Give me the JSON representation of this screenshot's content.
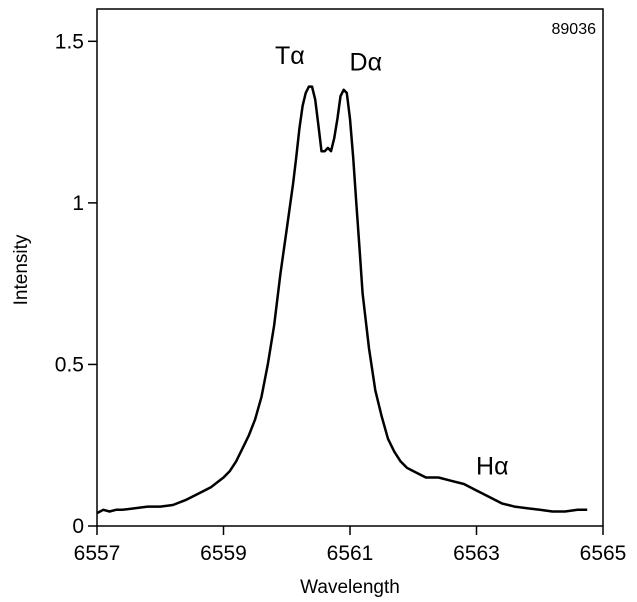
{
  "chart_data": {
    "type": "line",
    "shot_label": "89036",
    "xlabel": "Wavelength",
    "ylabel": "Intensity",
    "xlim": [
      6557,
      6565
    ],
    "ylim": [
      0,
      1.6
    ],
    "x_ticks": [
      6557,
      6559,
      6561,
      6563,
      6565
    ],
    "x_tick_labels": [
      "6557",
      "6559",
      "6561",
      "6563",
      "6565"
    ],
    "y_ticks": [
      0,
      0.5,
      1,
      1.5
    ],
    "y_tick_labels": [
      "0",
      "0.5",
      "1",
      "1.5"
    ],
    "grid": false,
    "legend": "none",
    "line_color": "#000000",
    "annotations": [
      {
        "text": "Tα",
        "x": 6560.05,
        "y": 1.43
      },
      {
        "text": "Dα",
        "x": 6561.25,
        "y": 1.41
      },
      {
        "text": "Hα",
        "x": 6563.25,
        "y": 0.16
      }
    ],
    "series": [
      {
        "x": [
          6557.0,
          6557.1,
          6557.2,
          6557.3,
          6557.4,
          6557.6,
          6557.8,
          6558.0,
          6558.2,
          6558.4,
          6558.6,
          6558.8,
          6559.0,
          6559.1,
          6559.2,
          6559.3,
          6559.4,
          6559.5,
          6559.6,
          6559.7,
          6559.8,
          6559.9,
          6560.0,
          6560.1,
          6560.15,
          6560.2,
          6560.25,
          6560.3,
          6560.35,
          6560.4,
          6560.45,
          6560.5,
          6560.55,
          6560.6,
          6560.65,
          6560.7,
          6560.75,
          6560.8,
          6560.85,
          6560.9,
          6560.95,
          6561.0,
          6561.05,
          6561.1,
          6561.15,
          6561.2,
          6561.3,
          6561.4,
          6561.5,
          6561.6,
          6561.7,
          6561.8,
          6561.9,
          6562.0,
          6562.2,
          6562.4,
          6562.6,
          6562.8,
          6563.0,
          6563.2,
          6563.4,
          6563.6,
          6563.8,
          6564.0,
          6564.2,
          6564.4,
          6564.6,
          6564.75
        ],
        "y": [
          0.04,
          0.05,
          0.045,
          0.05,
          0.05,
          0.055,
          0.06,
          0.06,
          0.065,
          0.08,
          0.1,
          0.12,
          0.15,
          0.17,
          0.2,
          0.24,
          0.28,
          0.33,
          0.4,
          0.5,
          0.62,
          0.78,
          0.92,
          1.06,
          1.14,
          1.23,
          1.3,
          1.34,
          1.36,
          1.36,
          1.32,
          1.24,
          1.16,
          1.16,
          1.17,
          1.16,
          1.2,
          1.26,
          1.33,
          1.35,
          1.34,
          1.26,
          1.14,
          1.0,
          0.86,
          0.72,
          0.55,
          0.42,
          0.34,
          0.27,
          0.23,
          0.2,
          0.18,
          0.17,
          0.15,
          0.15,
          0.14,
          0.13,
          0.11,
          0.09,
          0.07,
          0.06,
          0.055,
          0.05,
          0.045,
          0.045,
          0.05,
          0.05
        ]
      }
    ]
  }
}
